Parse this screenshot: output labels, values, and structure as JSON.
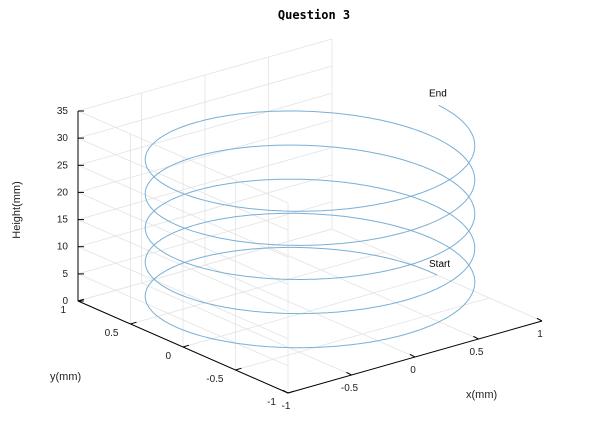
{
  "chart_data": {
    "type": "line",
    "subtype": "3d-helix",
    "title": "Question 3",
    "xlabel": "x(mm)",
    "ylabel": "y(mm)",
    "zlabel": "Height(mm)",
    "xlim": [
      -1,
      1
    ],
    "ylim": [
      -1,
      1
    ],
    "zlim": [
      0,
      35
    ],
    "x_ticks": [
      {
        "value": -1,
        "label": "-1"
      },
      {
        "value": -0.5,
        "label": "-0.5"
      },
      {
        "value": 0,
        "label": "0"
      },
      {
        "value": 0.5,
        "label": "0.5"
      },
      {
        "value": 1,
        "label": "1"
      }
    ],
    "y_ticks": [
      {
        "value": -1,
        "label": "-1"
      },
      {
        "value": -0.5,
        "label": "-0.5"
      },
      {
        "value": 0,
        "label": "0"
      },
      {
        "value": 0.5,
        "label": "0.5"
      },
      {
        "value": 1,
        "label": "1"
      }
    ],
    "z_ticks": [
      {
        "value": 0,
        "label": "0"
      },
      {
        "value": 5,
        "label": "5"
      },
      {
        "value": 10,
        "label": "10"
      },
      {
        "value": 15,
        "label": "15"
      },
      {
        "value": 20,
        "label": "20"
      },
      {
        "value": 25,
        "label": "25"
      },
      {
        "value": 30,
        "label": "30"
      },
      {
        "value": 35,
        "label": "35"
      }
    ],
    "grid": true,
    "series": [
      {
        "parametric": {
          "x": "cos(t)",
          "y": "sin(t)",
          "z": "t"
        },
        "t_range": [
          0,
          31.4
        ],
        "color": "#7aafd4"
      }
    ],
    "annotations": [
      {
        "text": "Start",
        "x": 1,
        "y": 0,
        "z": 0
      },
      {
        "text": "End",
        "x": 1,
        "y": 0,
        "z": 31.4
      }
    ]
  }
}
